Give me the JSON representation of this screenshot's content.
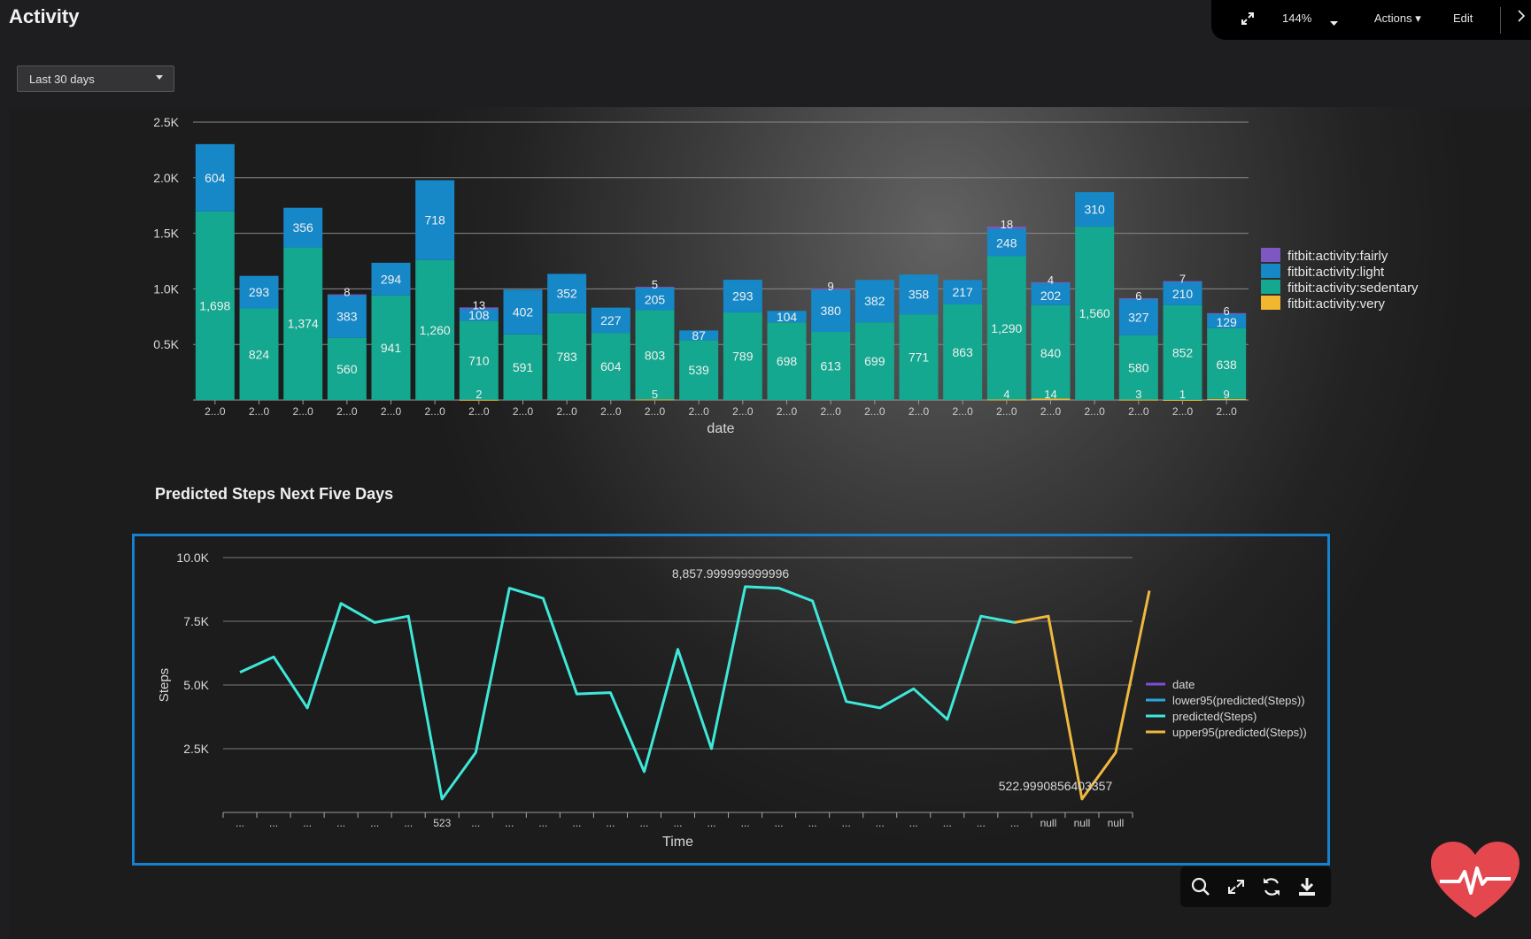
{
  "header": {
    "title": "Activity",
    "toolbar": {
      "zoom": "144%",
      "actions": "Actions",
      "edit": "Edit"
    }
  },
  "filters": {
    "time_range": "Last 30 days"
  },
  "colors": {
    "fairly": "#7e57c2",
    "light": "#1688c8",
    "sedentary": "#13a88f",
    "very": "#f2b731",
    "predicted_line": "#3ee8d8",
    "upper_line": "#efb83e",
    "lower_line": "#2aa6e0",
    "date_line": "#7c4ddb"
  },
  "chart_data": [
    {
      "type": "bar",
      "stacked": true,
      "xlabel": "date",
      "ylabel": "",
      "ylim": [
        0,
        2500
      ],
      "yticks": [
        "0.5K",
        "1.0K",
        "1.5K",
        "2.0K",
        "2.5K"
      ],
      "categories": [
        "2...0",
        "2...0",
        "2...0",
        "2...0",
        "2...0",
        "2...0",
        "2...0",
        "2...0",
        "2...0",
        "2...0",
        "2...0",
        "2...0",
        "2...0",
        "2...0",
        "2...0",
        "2...0",
        "2...0",
        "2...0",
        "2...0",
        "2...0",
        "2...0",
        "2...0",
        "2...0",
        "2...0"
      ],
      "legend_position": "right",
      "series": [
        {
          "name": "fitbit:activity:very",
          "color_key": "very",
          "values": [
            0,
            0,
            0,
            0,
            0,
            0,
            2,
            0,
            0,
            0,
            5,
            0,
            0,
            0,
            0,
            0,
            0,
            0,
            4,
            14,
            0,
            3,
            1,
            9
          ]
        },
        {
          "name": "fitbit:activity:sedentary",
          "color_key": "sedentary",
          "values": [
            1698,
            824,
            1374,
            560,
            941,
            1260,
            710,
            591,
            783,
            604,
            803,
            539,
            789,
            698,
            613,
            699,
            771,
            863,
            1290,
            840,
            1560,
            580,
            852,
            638
          ]
        },
        {
          "name": "fitbit:activity:light",
          "color_key": "light",
          "values": [
            604,
            293,
            356,
            383,
            294,
            718,
            108,
            402,
            352,
            227,
            205,
            87,
            293,
            104,
            380,
            382,
            358,
            217,
            248,
            202,
            310,
            327,
            210,
            129
          ]
        },
        {
          "name": "fitbit:activity:fairly",
          "color_key": "fairly",
          "values": [
            0,
            0,
            0,
            8,
            0,
            0,
            13,
            0,
            0,
            0,
            5,
            0,
            0,
            0,
            9,
            0,
            0,
            0,
            18,
            4,
            0,
            6,
            7,
            6
          ]
        }
      ]
    },
    {
      "type": "line",
      "title": "Predicted Steps Next Five Days",
      "xlabel": "Time",
      "ylabel": "Steps",
      "ylim": [
        0,
        10000
      ],
      "yticks": [
        "2.5K",
        "5.0K",
        "7.5K",
        "10.0K"
      ],
      "x_tick_labels": [
        "...",
        "...",
        "...",
        "...",
        "...",
        "...",
        "523",
        "...",
        "...",
        "...",
        "...",
        "...",
        "...",
        "...",
        "...",
        "...",
        "...",
        "...",
        "...",
        "...",
        "...",
        "...",
        "...",
        "...",
        "null",
        "null",
        "null"
      ],
      "legend_position": "right",
      "legend": [
        "date",
        "lower95(predicted(Steps))",
        "predicted(Steps)",
        "upper95(predicted(Steps))"
      ],
      "annotations": {
        "max_label": "8,857.999999999996",
        "min_label": "522.9990856403357"
      },
      "series": [
        {
          "name": "predicted(Steps)",
          "color_key": "predicted_line",
          "values": [
            5500,
            6100,
            4100,
            8200,
            7450,
            7700,
            523,
            2350,
            8800,
            8400,
            4650,
            4700,
            1600,
            6400,
            2500,
            8858,
            8800,
            8300,
            4350,
            4100,
            4850,
            3650,
            7700,
            7450
          ]
        },
        {
          "name": "upper95(predicted(Steps))",
          "color_key": "upper_line",
          "x_start_index": 23,
          "values": [
            7450,
            7700,
            523,
            2350,
            8700
          ]
        }
      ]
    }
  ]
}
